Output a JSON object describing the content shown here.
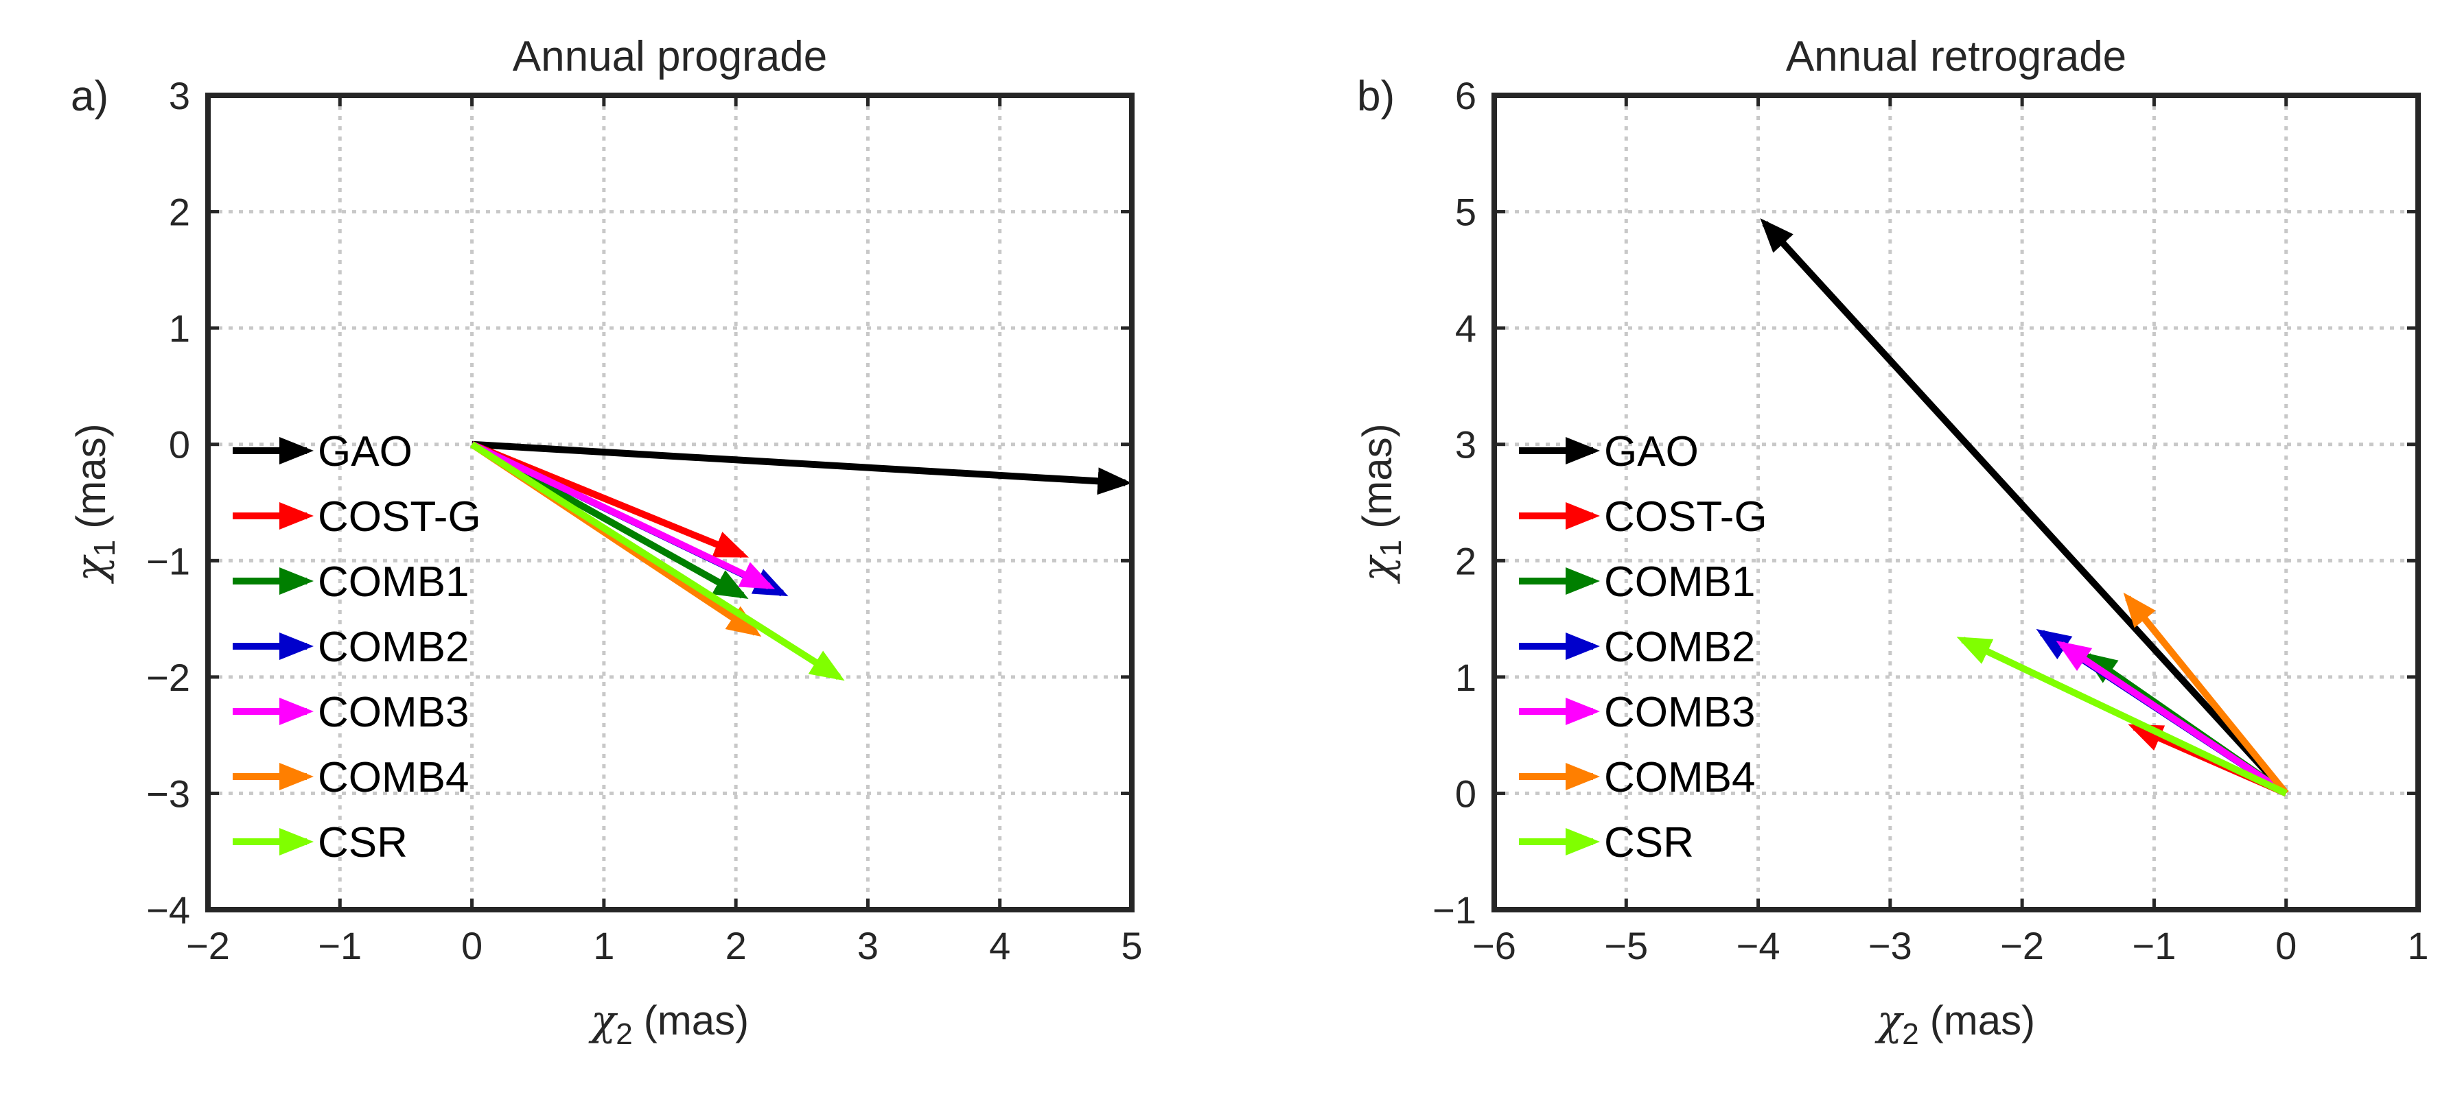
{
  "chart_data": [
    {
      "type": "vector",
      "panel_label": "a)",
      "title": "Annual prograde",
      "xlabel": {
        "symbol": "χ",
        "subscript": "2",
        "unit": "(mas)"
      },
      "ylabel": {
        "symbol": "χ",
        "subscript": "1",
        "unit": "(mas)"
      },
      "xlim": [
        -2,
        5
      ],
      "ylim": [
        -4,
        3
      ],
      "xticks": [
        -2,
        -1,
        0,
        1,
        2,
        3,
        4,
        5
      ],
      "yticks": [
        -4,
        -3,
        -2,
        -1,
        0,
        1,
        2,
        3
      ],
      "xtick_labels": [
        "−2",
        "−1",
        "0",
        "1",
        "2",
        "3",
        "4",
        "5"
      ],
      "ytick_labels": [
        "−4",
        "−3",
        "−2",
        "−1",
        "0",
        "1",
        "2",
        "3"
      ],
      "grid": true,
      "legend_position": "left",
      "series": [
        {
          "name": "GAO",
          "color": "#000000",
          "x": 4.95,
          "y": -0.33
        },
        {
          "name": "COST-G",
          "color": "#ff0000",
          "x": 2.05,
          "y": -0.95
        },
        {
          "name": "COMB1",
          "color": "#007f00",
          "x": 2.05,
          "y": -1.3
        },
        {
          "name": "COMB2",
          "color": "#0000cc",
          "x": 2.35,
          "y": -1.28
        },
        {
          "name": "COMB3",
          "color": "#ff00ff",
          "x": 2.25,
          "y": -1.22
        },
        {
          "name": "COMB4",
          "color": "#ff7f00",
          "x": 2.15,
          "y": -1.62
        },
        {
          "name": "CSR",
          "color": "#80ff00",
          "x": 2.78,
          "y": -2.0
        }
      ]
    },
    {
      "type": "vector",
      "panel_label": "b)",
      "title": "Annual retrograde",
      "xlabel": {
        "symbol": "χ",
        "subscript": "2",
        "unit": "(mas)"
      },
      "ylabel": {
        "symbol": "χ",
        "subscript": "1",
        "unit": "(mas)"
      },
      "xlim": [
        -6,
        1
      ],
      "ylim": [
        -1,
        6
      ],
      "xticks": [
        -6,
        -5,
        -4,
        -3,
        -2,
        -1,
        0,
        1
      ],
      "yticks": [
        -1,
        0,
        1,
        2,
        3,
        4,
        5,
        6
      ],
      "xtick_labels": [
        "−6",
        "−5",
        "−4",
        "−3",
        "−2",
        "−1",
        "0",
        "1"
      ],
      "ytick_labels": [
        "−1",
        "0",
        "1",
        "2",
        "3",
        "4",
        "5",
        "6"
      ],
      "grid": true,
      "legend_position": "left",
      "series": [
        {
          "name": "GAO",
          "color": "#000000",
          "x": -3.95,
          "y": 4.9
        },
        {
          "name": "COST-G",
          "color": "#ff0000",
          "x": -1.15,
          "y": 0.57
        },
        {
          "name": "COMB1",
          "color": "#007f00",
          "x": -1.5,
          "y": 1.18
        },
        {
          "name": "COMB2",
          "color": "#0000cc",
          "x": -1.85,
          "y": 1.38
        },
        {
          "name": "COMB3",
          "color": "#ff00ff",
          "x": -1.7,
          "y": 1.28
        },
        {
          "name": "COMB4",
          "color": "#ff7f00",
          "x": -1.2,
          "y": 1.68
        },
        {
          "name": "CSR",
          "color": "#80ff00",
          "x": -2.45,
          "y": 1.32
        }
      ]
    }
  ]
}
